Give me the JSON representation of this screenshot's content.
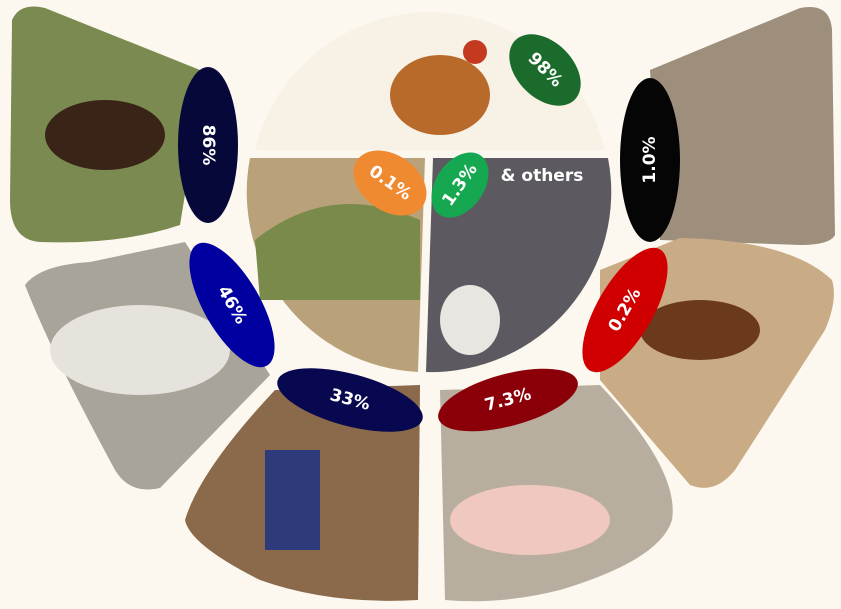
{
  "items": [
    {
      "label": "98%"
    },
    {
      "label": "86%"
    },
    {
      "label": "1.0%"
    },
    {
      "label": "46%"
    },
    {
      "label": "0.2%"
    },
    {
      "label": "33%"
    },
    {
      "label": "7.3%"
    },
    {
      "label": "0.1%"
    },
    {
      "label": "1.3%"
    }
  ],
  "others": "& others"
}
